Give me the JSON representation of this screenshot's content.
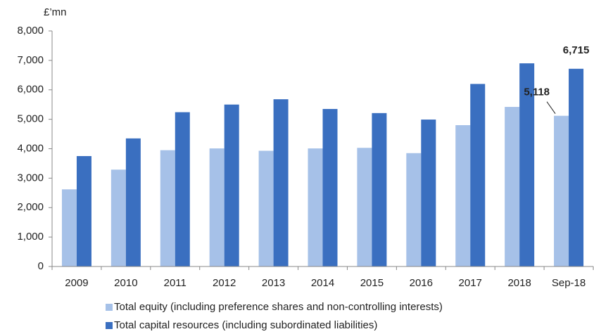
{
  "chart_data": {
    "type": "bar",
    "unit_label": "£’mn",
    "categories": [
      "2009",
      "2010",
      "2011",
      "2012",
      "2013",
      "2014",
      "2015",
      "2016",
      "2017",
      "2018",
      "Sep-18"
    ],
    "series": [
      {
        "name": "Total equity (including preference shares and non-controlling interests)",
        "color": "#a6c1e8",
        "values": [
          2620,
          3290,
          3950,
          4010,
          3930,
          4010,
          4030,
          3850,
          4800,
          5420,
          5118
        ],
        "value_labels": [
          null,
          null,
          null,
          null,
          null,
          null,
          null,
          null,
          null,
          null,
          "5,118"
        ]
      },
      {
        "name": "Total capital resources (including subordinated liabilities)",
        "color": "#3a6fc0",
        "values": [
          3750,
          4350,
          5240,
          5500,
          5680,
          5350,
          5210,
          4990,
          6200,
          6900,
          6715
        ],
        "value_labels": [
          null,
          null,
          null,
          null,
          null,
          null,
          null,
          null,
          null,
          null,
          "6,715"
        ]
      }
    ],
    "ylim": [
      0,
      8000
    ],
    "yticks": [
      0,
      {
        "value": 1000,
        "label": "1,000"
      },
      {
        "value": 2000,
        "label": "2,000"
      },
      {
        "value": 3000,
        "label": "3,000"
      },
      {
        "value": 4000,
        "label": "4,000"
      },
      {
        "value": 5000,
        "label": "5,000"
      },
      {
        "value": 6000,
        "label": "6,000"
      },
      {
        "value": 7000,
        "label": "7,000"
      },
      {
        "value": 8000,
        "label": "8,000"
      }
    ],
    "grid": false
  }
}
